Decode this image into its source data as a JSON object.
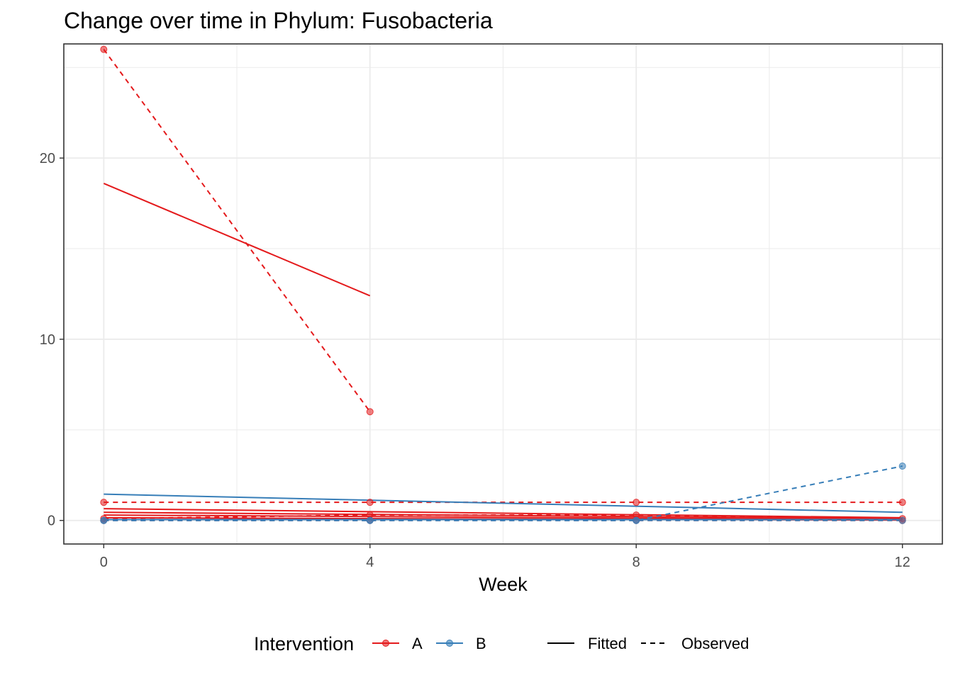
{
  "chart_data": {
    "type": "line",
    "title": "Change over time in Phylum: Fusobacteria",
    "xlabel": "Week",
    "ylabel": "",
    "xlim": [
      -0.6,
      12.6
    ],
    "ylim": [
      -1.3,
      26.3
    ],
    "x_ticks": [
      0,
      4,
      8,
      12
    ],
    "y_ticks": [
      0,
      10,
      20
    ],
    "grid": true,
    "legend_position": "bottom",
    "legend": {
      "title": "Intervention",
      "groups": [
        {
          "label": "A",
          "color": "#E41A1C"
        },
        {
          "label": "B",
          "color": "#377EB8"
        }
      ],
      "linetypes": [
        {
          "label": "Fitted",
          "dash": "solid"
        },
        {
          "label": "Observed",
          "dash": "dashed"
        }
      ]
    },
    "series": [
      {
        "group": "A",
        "kind": "observed",
        "x": [
          0,
          4
        ],
        "y": [
          26,
          6
        ]
      },
      {
        "group": "A",
        "kind": "fitted",
        "x": [
          0,
          4
        ],
        "y": [
          18.6,
          12.4
        ]
      },
      {
        "group": "A",
        "kind": "observed",
        "x": [
          0,
          4,
          8,
          12
        ],
        "y": [
          1,
          1,
          1,
          1
        ]
      },
      {
        "group": "A",
        "kind": "observed",
        "x": [
          0,
          4,
          8,
          12
        ],
        "y": [
          0,
          0,
          0,
          0
        ]
      },
      {
        "group": "A",
        "kind": "observed",
        "x": [
          0,
          4,
          8,
          12
        ],
        "y": [
          0.1,
          0.3,
          0.3,
          0.1
        ]
      },
      {
        "group": "A",
        "kind": "fitted",
        "x": [
          0,
          12
        ],
        "y": [
          0.65,
          0.15
        ]
      },
      {
        "group": "A",
        "kind": "fitted",
        "x": [
          0,
          12
        ],
        "y": [
          0.45,
          0.1
        ]
      },
      {
        "group": "A",
        "kind": "fitted",
        "x": [
          0,
          12
        ],
        "y": [
          0.3,
          0.05
        ]
      },
      {
        "group": "A",
        "kind": "fitted",
        "x": [
          0,
          12
        ],
        "y": [
          0.15,
          0.02
        ]
      },
      {
        "group": "B",
        "kind": "observed",
        "x": [
          0,
          4,
          8,
          12
        ],
        "y": [
          0,
          0,
          0,
          3
        ]
      },
      {
        "group": "B",
        "kind": "observed",
        "x": [
          0,
          4,
          8,
          12
        ],
        "y": [
          0,
          0,
          0,
          0
        ]
      },
      {
        "group": "B",
        "kind": "fitted",
        "x": [
          0,
          12
        ],
        "y": [
          1.45,
          0.45
        ]
      },
      {
        "group": "B",
        "kind": "fitted",
        "x": [
          0,
          12
        ],
        "y": [
          0.05,
          0.05
        ]
      }
    ]
  }
}
